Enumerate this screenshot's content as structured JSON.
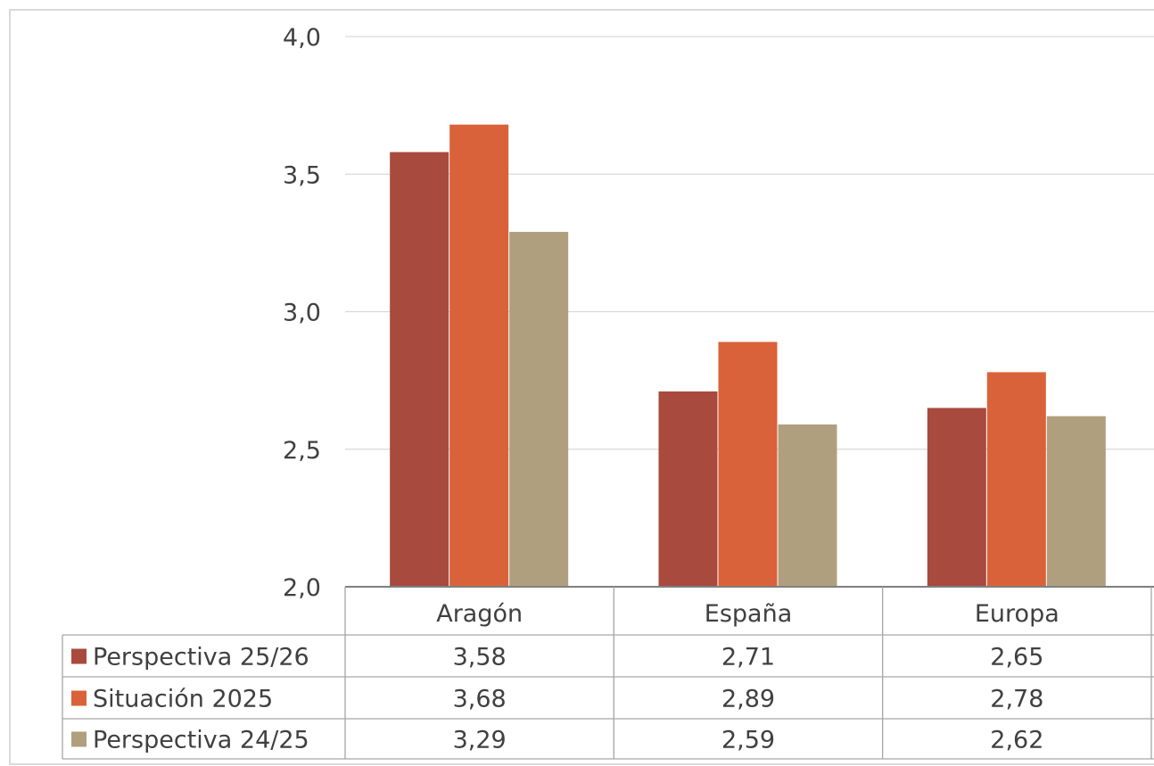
{
  "chart_data": {
    "type": "bar",
    "categories": [
      "Aragón",
      "España",
      "Europa"
    ],
    "series": [
      {
        "name": "Perspectiva 25/26",
        "color": "#a84a3e",
        "values": [
          3.58,
          2.71,
          2.65
        ],
        "labels": [
          "3,58",
          "2,71",
          "2,65"
        ]
      },
      {
        "name": "Situación 2025",
        "color": "#d9623a",
        "values": [
          3.68,
          2.89,
          2.78
        ],
        "labels": [
          "3,68",
          "2,89",
          "2,78"
        ]
      },
      {
        "name": "Perspectiva 24/25",
        "color": "#b09f7f",
        "values": [
          3.29,
          2.59,
          2.62
        ],
        "labels": [
          "3,29",
          "2,59",
          "2,62"
        ]
      }
    ],
    "ylim": [
      2.0,
      4.0
    ],
    "yticks": [
      2.0,
      2.5,
      3.0,
      3.5,
      4.0
    ],
    "ytick_labels": [
      "2,0",
      "2,5",
      "3,0",
      "3,5",
      "4,0"
    ],
    "grid": true,
    "legend": "data-table"
  }
}
